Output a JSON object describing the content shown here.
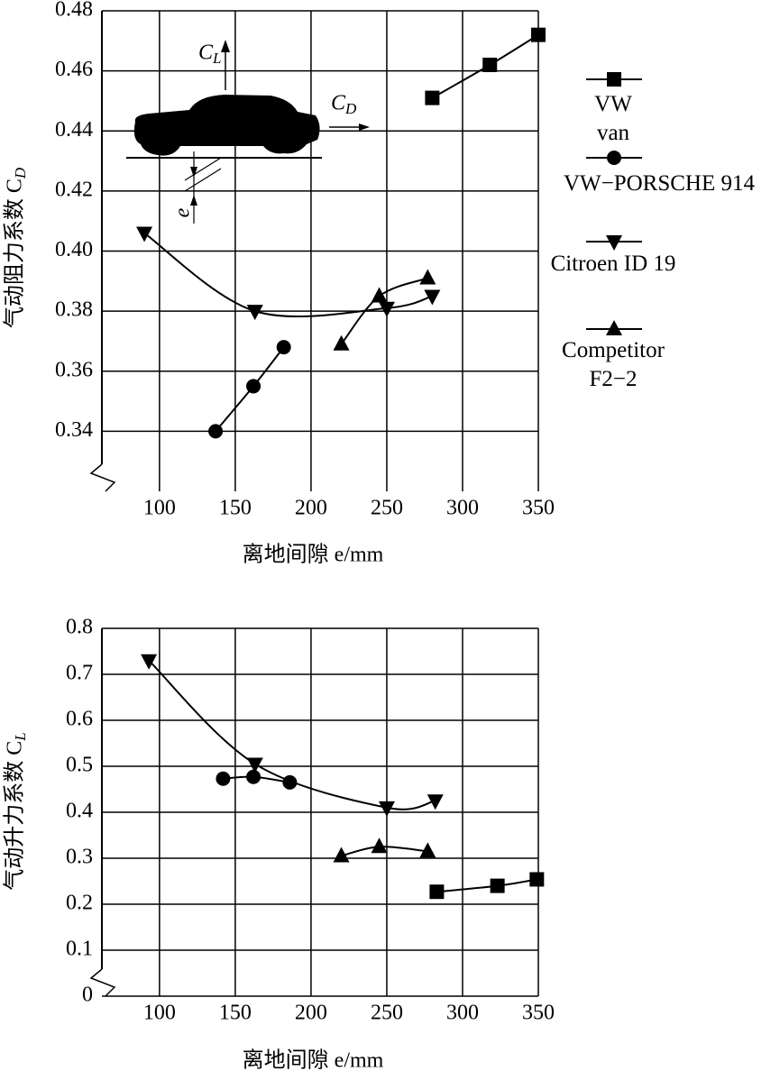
{
  "chart_data": [
    {
      "type": "scatter",
      "x_label": "离地间隙 e/mm",
      "y_label": "气动阻力系数 CD",
      "annotations": [
        "CL",
        "CD",
        "e"
      ],
      "xlim": [
        62,
        350
      ],
      "xticks": [
        100,
        150,
        200,
        250,
        300,
        350
      ],
      "ylim": [
        0.32,
        0.48
      ],
      "yticks": [
        0.34,
        0.36,
        0.38,
        {
          "value": 0.4,
          "label": "0.40"
        },
        0.42,
        0.44,
        0.46,
        0.48
      ],
      "grid": true,
      "series": [
        {
          "name": "VW van",
          "color": "#000000",
          "marker": "square",
          "x": [
            280,
            318,
            350
          ],
          "values": [
            0.451,
            0.462,
            0.472
          ]
        },
        {
          "name": "VW−PORSCHE 914",
          "color": "#000000",
          "marker": "circle",
          "x": [
            137,
            162,
            182
          ],
          "values": [
            0.34,
            0.355,
            0.368
          ]
        },
        {
          "name": "Citroen ID 19",
          "color": "#000000",
          "marker": "triangle-down",
          "x": [
            90,
            163,
            250,
            280
          ],
          "values": [
            0.406,
            0.38,
            0.381,
            0.385
          ]
        },
        {
          "name": "Competitor F2−2",
          "color": "#000000",
          "marker": "triangle-up",
          "x": [
            220,
            245,
            277
          ],
          "values": [
            0.369,
            0.385,
            0.391
          ]
        }
      ]
    },
    {
      "type": "scatter",
      "x_label": "离地间隙 e/mm",
      "y_label": "气动升力系数 CL",
      "xlim": [
        62,
        350
      ],
      "xticks": [
        100,
        150,
        200,
        250,
        300,
        350
      ],
      "ylim": [
        0,
        0.8
      ],
      "yticks": [
        0,
        0.1,
        0.2,
        0.3,
        0.4,
        0.5,
        0.6,
        0.7,
        0.8
      ],
      "grid": true,
      "series": [
        {
          "color": "#000000",
          "marker": "square",
          "x": [
            283,
            323,
            349
          ],
          "values": [
            0.227,
            0.24,
            0.254
          ]
        },
        {
          "color": "#000000",
          "marker": "circle",
          "x": [
            142,
            162,
            186
          ],
          "values": [
            0.473,
            0.477,
            0.465
          ]
        },
        {
          "color": "#000000",
          "marker": "triangle-down",
          "x": [
            93,
            163,
            250,
            282
          ],
          "values": [
            0.73,
            0.505,
            0.41,
            0.425
          ]
        },
        {
          "color": "#000000",
          "marker": "triangle-up",
          "x": [
            220,
            245,
            277
          ],
          "values": [
            0.305,
            0.325,
            0.315
          ]
        }
      ]
    }
  ]
}
